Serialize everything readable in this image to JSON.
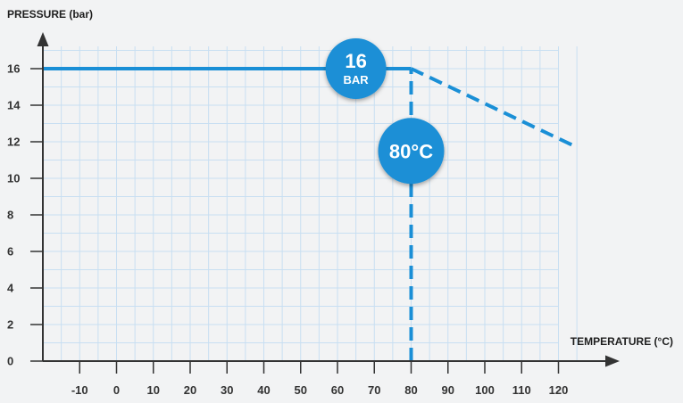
{
  "chart_data": {
    "type": "line",
    "ylabel": "PRESSURE (bar)",
    "xlabel": "TEMPERATURE (°C)",
    "x_ticks": [
      -10,
      0,
      10,
      20,
      30,
      40,
      50,
      60,
      70,
      80,
      90,
      100,
      110,
      120
    ],
    "y_ticks": [
      0,
      2,
      4,
      6,
      8,
      10,
      12,
      14,
      16
    ],
    "xlim": [
      -20,
      130
    ],
    "ylim": [
      0,
      18
    ],
    "highlight_x_tick": 80,
    "grid": true,
    "series": [
      {
        "points": [
          [
            -20,
            16
          ],
          [
            80,
            16
          ]
        ],
        "style": "solid",
        "color": "#1a8fd6"
      },
      {
        "points": [
          [
            80,
            16
          ],
          [
            125,
            11.7
          ]
        ],
        "style": "dashed",
        "color": "#1a8fd6"
      }
    ],
    "reference_lines": [
      {
        "orientation": "vertical",
        "x": 80,
        "y_range": [
          0,
          16
        ],
        "style": "dashed",
        "color": "#1a8fd6"
      }
    ],
    "annotations": [
      {
        "x": 65,
        "y": 16,
        "value": "16",
        "unit": "BAR"
      },
      {
        "x": 80,
        "y": 11.5,
        "value": "80°C"
      }
    ]
  },
  "colors": {
    "accent": "#1a8fd6",
    "grid": "#c8dff2",
    "axis": "#333333",
    "background": "#f2f3f4"
  }
}
